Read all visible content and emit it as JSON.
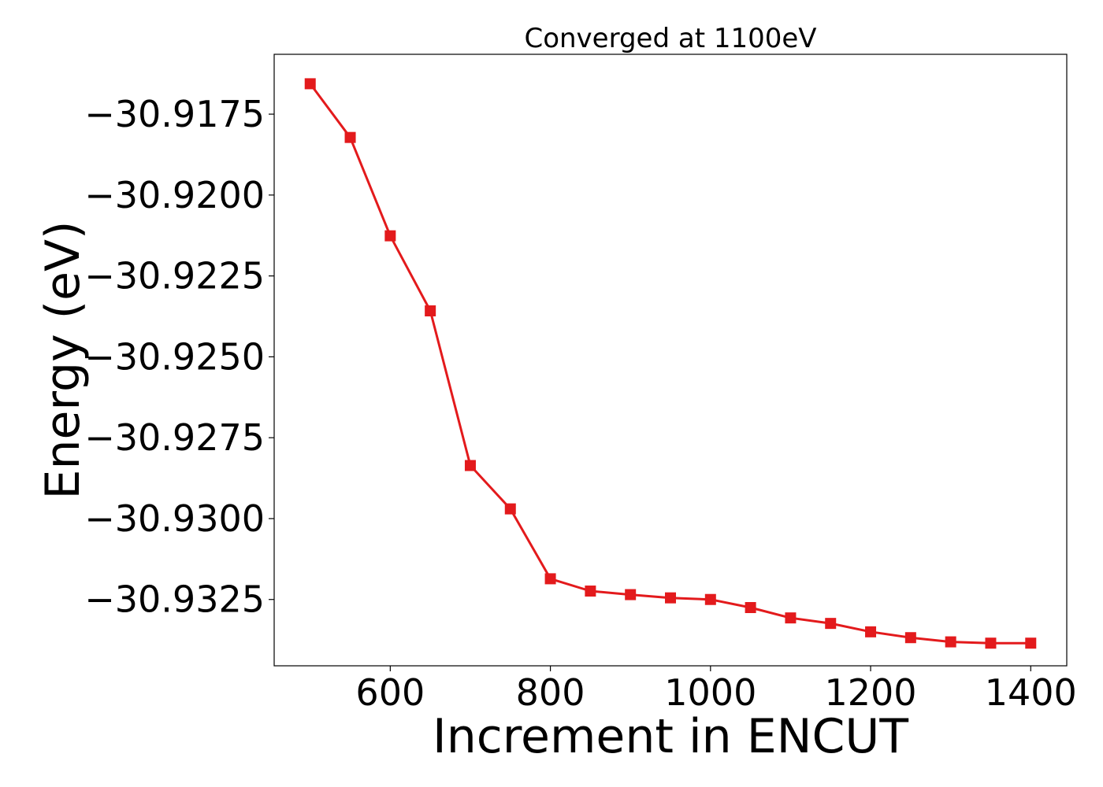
{
  "chart_data": {
    "type": "line",
    "title": "Converged at 1100eV",
    "xlabel": "Increment in ENCUT",
    "ylabel": "Energy (eV)",
    "xlim": [
      455,
      1445
    ],
    "ylim": [
      -30.93455,
      -30.91565
    ],
    "xticks": [
      600,
      800,
      1000,
      1200,
      1400
    ],
    "xtick_labels": [
      "600",
      "800",
      "1000",
      "1200",
      "1400"
    ],
    "yticks": [
      -30.9175,
      -30.92,
      -30.9225,
      -30.925,
      -30.9275,
      -30.93,
      -30.9325
    ],
    "ytick_labels": [
      "−30.9175",
      "−30.9200",
      "−30.9225",
      "−30.9250",
      "−30.9275",
      "−30.9300",
      "−30.9325"
    ],
    "grid": false,
    "marker": "square",
    "color": "#e31a1c",
    "x": [
      500,
      550,
      600,
      650,
      700,
      750,
      800,
      850,
      900,
      950,
      1000,
      1050,
      1100,
      1150,
      1200,
      1250,
      1300,
      1350,
      1400
    ],
    "y": [
      -30.91656,
      -30.91822,
      -30.92126,
      -30.92358,
      -30.92836,
      -30.9297,
      -30.93186,
      -30.93224,
      -30.93235,
      -30.93245,
      -30.9325,
      -30.93275,
      -30.93307,
      -30.93324,
      -30.9335,
      -30.93368,
      -30.93381,
      -30.93385,
      -30.93385
    ]
  }
}
